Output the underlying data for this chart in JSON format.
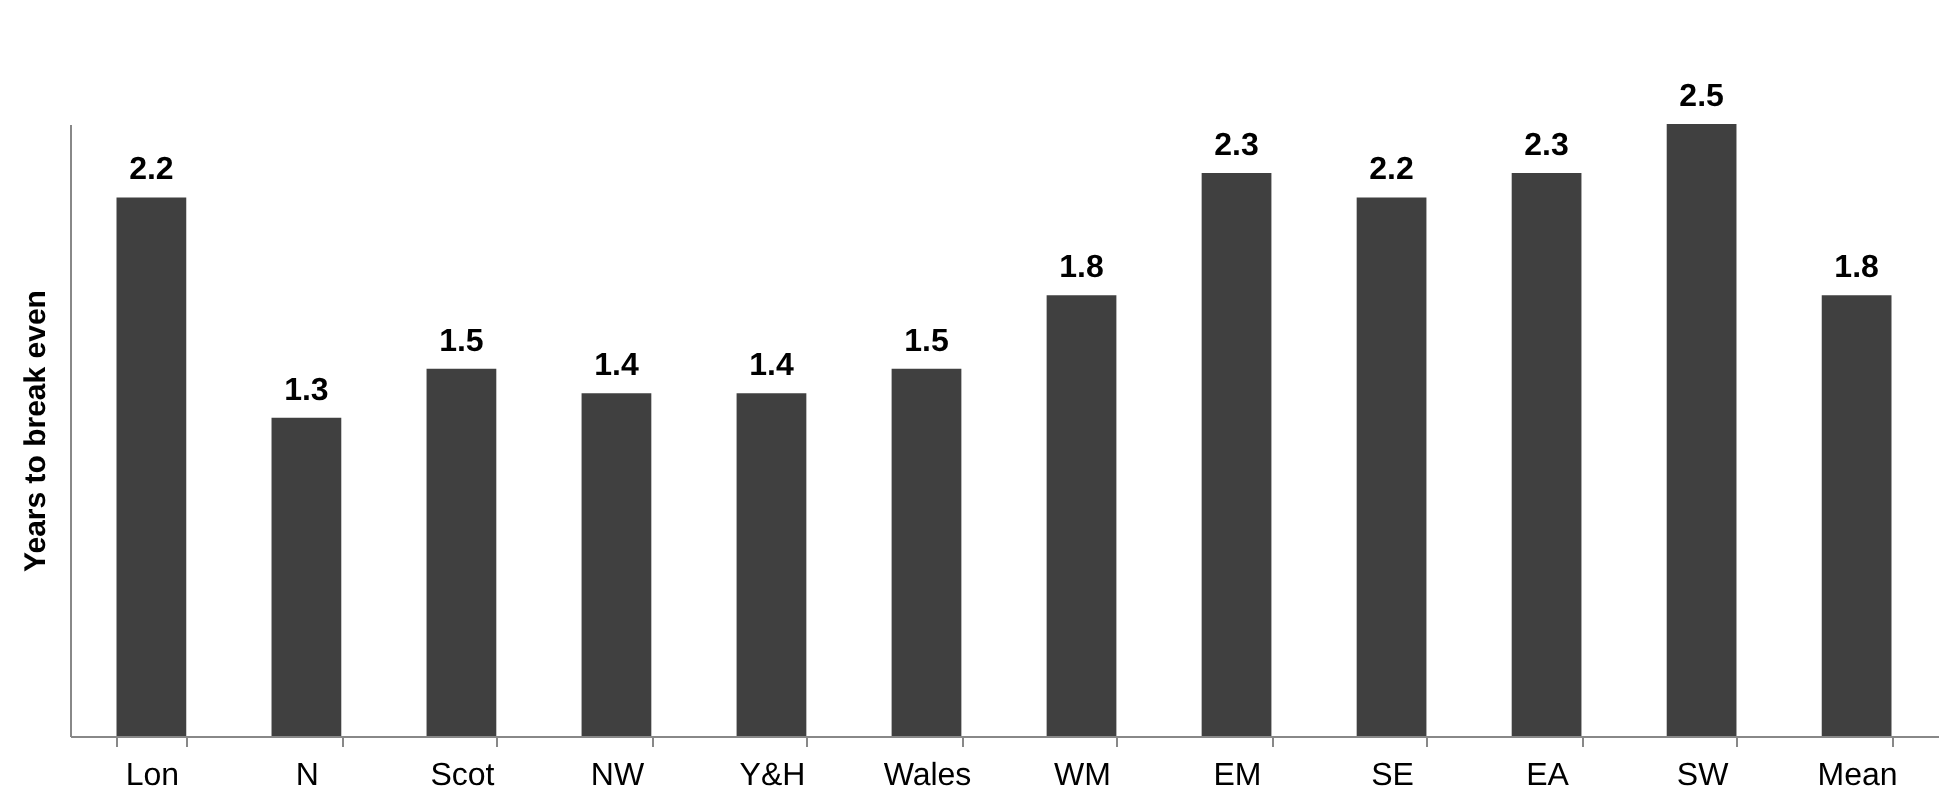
{
  "chart_data": {
    "type": "bar",
    "ylabel": "Years to break even",
    "categories": [
      "Lon",
      "N",
      "Scot",
      "NW",
      "Y&H",
      "Wales",
      "WM",
      "EM",
      "SE",
      "EA",
      "SW",
      "Mean"
    ],
    "values": [
      2.2,
      1.3,
      1.5,
      1.4,
      1.4,
      1.5,
      1.8,
      2.3,
      2.2,
      2.3,
      2.5,
      1.8
    ],
    "color": "#404040",
    "data_labels": true,
    "tick_labels": "x",
    "grid": false
  }
}
